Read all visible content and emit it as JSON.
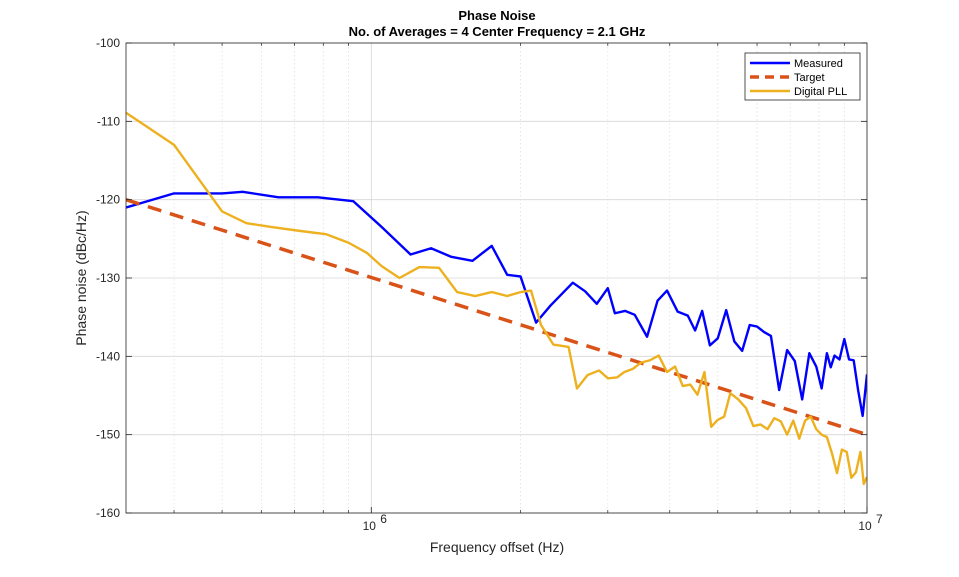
{
  "chart_data": {
    "type": "line",
    "title": "Phase Noise",
    "subtitle": "No. of Averages = 4 Center Frequency = 2.1 GHz",
    "xlabel": "Frequency offset (Hz)",
    "ylabel": "Phase noise (dBc/Hz)",
    "xscale": "log",
    "xlim": [
      320000,
      10000000
    ],
    "ylim": [
      -160,
      -100
    ],
    "grid": true,
    "legend_position": "top-right",
    "x_ticks": [
      {
        "value": 1000000,
        "base": "10",
        "exp": "6"
      },
      {
        "value": 10000000,
        "base": "10",
        "exp": "7"
      }
    ],
    "y_ticks": [
      {
        "value": -100,
        "label": "-100"
      },
      {
        "value": -110,
        "label": "-110"
      },
      {
        "value": -120,
        "label": "-120"
      },
      {
        "value": -130,
        "label": "-130"
      },
      {
        "value": -140,
        "label": "-140"
      },
      {
        "value": -150,
        "label": "-150"
      },
      {
        "value": -160,
        "label": "-160"
      }
    ],
    "series": [
      {
        "name": "Measured",
        "color": "#0000ff",
        "style": "solid",
        "x": [
          320000,
          400000,
          500000,
          550000,
          650000,
          780000,
          920000,
          1050000,
          1200000,
          1320000,
          1450000,
          1600000,
          1750000,
          1880000,
          2000000,
          2150000,
          2300000,
          2550000,
          2700000,
          2850000,
          3000000,
          3100000,
          3250000,
          3400000,
          3600000,
          3780000,
          3950000,
          4150000,
          4350000,
          4500000,
          4650000,
          4820000,
          5000000,
          5200000,
          5400000,
          5600000,
          5800000,
          6000000,
          6200000,
          6400000,
          6650000,
          6900000,
          7150000,
          7400000,
          7650000,
          7900000,
          8100000,
          8300000,
          8450000,
          8600000,
          8800000,
          9000000,
          9200000,
          9400000,
          9600000,
          9800000,
          10000000
        ],
        "y": [
          -121,
          -119.2,
          -119.2,
          -119,
          -119.7,
          -119.7,
          -120.2,
          -123.5,
          -127,
          -126.2,
          -127.3,
          -127.8,
          -125.9,
          -129.6,
          -129.8,
          -135.7,
          -133.5,
          -130.6,
          -131.7,
          -133.3,
          -131.3,
          -134.5,
          -134.2,
          -134.7,
          -137.5,
          -132.9,
          -131.6,
          -134.3,
          -134.8,
          -136.7,
          -134.2,
          -138.6,
          -137.7,
          -134.1,
          -138.1,
          -139.3,
          -136,
          -136.2,
          -136.9,
          -137.4,
          -144.3,
          -139.2,
          -140.6,
          -145.5,
          -139.6,
          -141.3,
          -144.1,
          -139.6,
          -141.4,
          -139.9,
          -140.4,
          -137.8,
          -140.4,
          -140.5,
          -144.4,
          -147.6,
          -142.3
        ]
      },
      {
        "name": "Target",
        "color": "#d95319",
        "style": "dashed",
        "x": [
          320000,
          10000000
        ],
        "y": [
          -120,
          -150
        ]
      },
      {
        "name": "Digital PLL",
        "color": "#edb120",
        "style": "solid",
        "x": [
          320000,
          400000,
          500000,
          560000,
          630000,
          720000,
          810000,
          900000,
          980000,
          1050000,
          1140000,
          1250000,
          1370000,
          1490000,
          1620000,
          1750000,
          1880000,
          2000000,
          2100000,
          2200000,
          2330000,
          2500000,
          2600000,
          2730000,
          2880000,
          3000000,
          3130000,
          3240000,
          3370000,
          3500000,
          3650000,
          3800000,
          3950000,
          4100000,
          4250000,
          4400000,
          4550000,
          4700000,
          4850000,
          5000000,
          5150000,
          5300000,
          5500000,
          5700000,
          5900000,
          6100000,
          6300000,
          6500000,
          6700000,
          6900000,
          7100000,
          7300000,
          7500000,
          7700000,
          7900000,
          8100000,
          8300000,
          8500000,
          8700000,
          8900000,
          9100000,
          9300000,
          9500000,
          9700000,
          9850000,
          10000000
        ],
        "y": [
          -108.9,
          -113,
          -121.5,
          -123,
          -123.5,
          -124,
          -124.4,
          -125.5,
          -126.8,
          -128.5,
          -130,
          -128.6,
          -128.7,
          -131.8,
          -132.3,
          -131.8,
          -132.3,
          -131.8,
          -131.6,
          -136,
          -138.5,
          -138.8,
          -144.1,
          -142.4,
          -141.8,
          -142.8,
          -142.7,
          -142,
          -141.6,
          -140.8,
          -140.5,
          -139.9,
          -142,
          -141.3,
          -143.8,
          -143.6,
          -144.9,
          -142,
          -149,
          -148.1,
          -147.7,
          -144.7,
          -145.5,
          -146.6,
          -148.9,
          -148.7,
          -149.3,
          -147.9,
          -148.3,
          -150,
          -148.2,
          -150.5,
          -148.2,
          -147.7,
          -149.3,
          -150,
          -150.3,
          -152.4,
          -154.9,
          -151.9,
          -152.2,
          -155.5,
          -154.8,
          -152.2,
          -156.3,
          -155.4
        ]
      }
    ]
  }
}
